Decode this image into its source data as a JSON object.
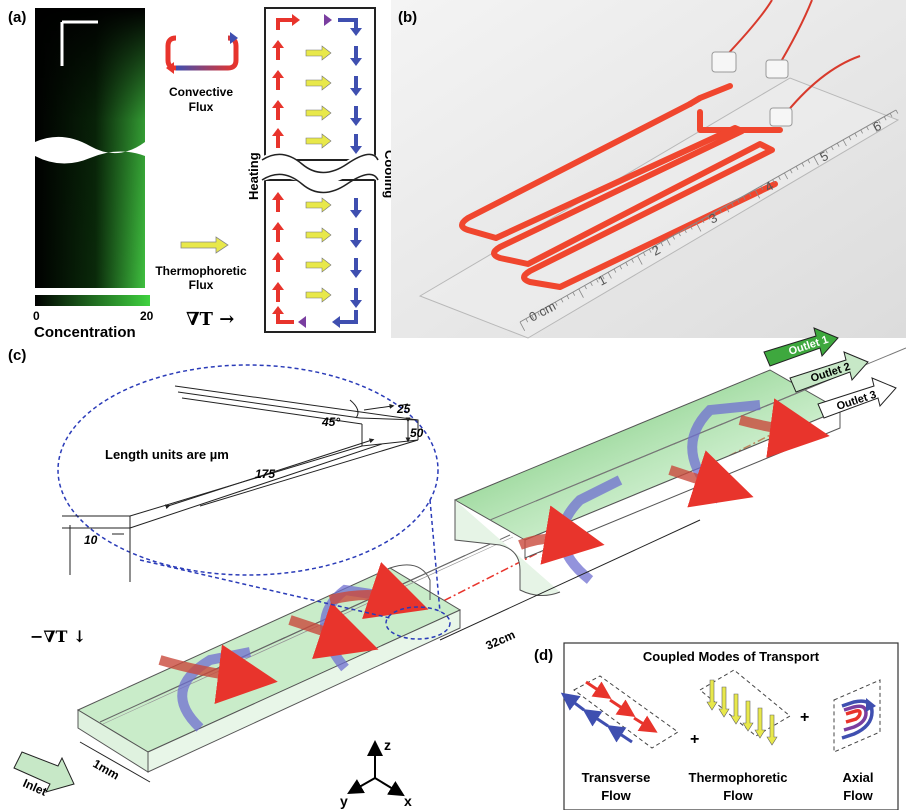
{
  "panels": {
    "a": "(a)",
    "b": "(b)",
    "c": "(c)",
    "d": "(d)"
  },
  "panel_a": {
    "colorbar_label": "Concentration",
    "colorbar_min": "0",
    "colorbar_max": "20",
    "convective_line1": "Convective",
    "convective_line2": "Flux",
    "thermo_line1": "Thermophoretic",
    "thermo_line2": "Flux",
    "grad_t": "∇T →",
    "heating": "Heating",
    "cooling": "Cooling",
    "colors": {
      "hot": "#e8342c",
      "cold": "#3f4fb0",
      "thermo": "#e8e84a",
      "green": "#3fbf3f"
    }
  },
  "panel_b": {
    "ruler_cm": "0 cm",
    "ruler_numbers": [
      "1",
      "2",
      "3",
      "4",
      "5",
      "6"
    ]
  },
  "panel_c": {
    "length_units": "Length units are µm",
    "dims": {
      "d25": "25",
      "d50": "50",
      "d175": "175",
      "d10": "10",
      "angle": "45°"
    },
    "outlets": [
      "Outlet 1",
      "Outlet 2",
      "Outlet 3"
    ],
    "inlet": "Inlet",
    "length": "32cm",
    "width": "1mm",
    "neg_grad_t": "−∇T ↓",
    "axes": {
      "x": "x",
      "y": "y",
      "z": "z"
    }
  },
  "panel_d": {
    "title": "Coupled Modes of Transport",
    "plus": "+",
    "transverse": [
      "Transverse",
      "Flow"
    ],
    "thermophoretic": [
      "Thermophoretic",
      "Flow"
    ],
    "axial": [
      "Axial",
      "Flow"
    ]
  }
}
